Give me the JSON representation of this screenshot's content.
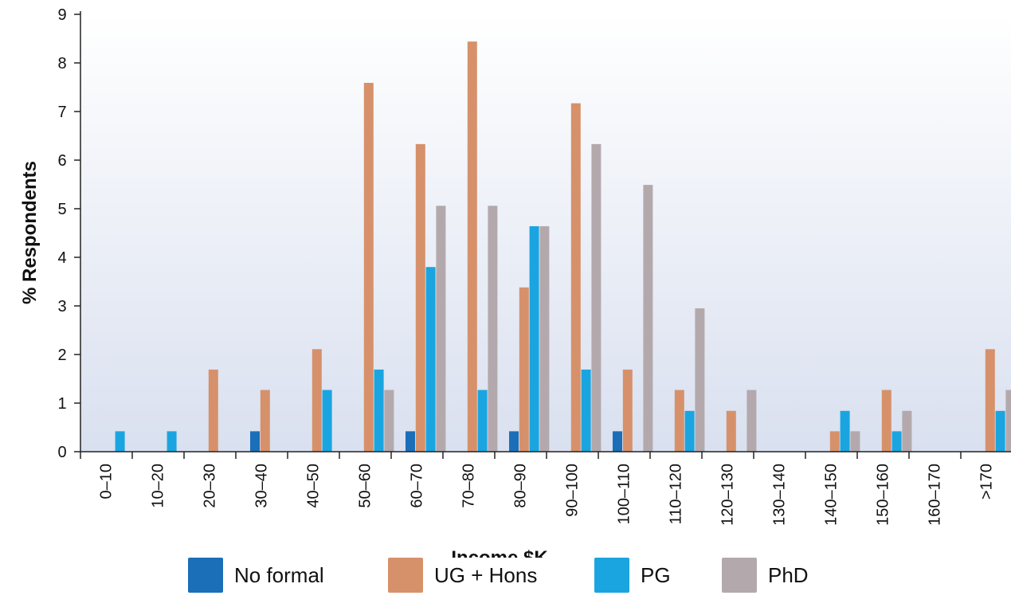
{
  "chart_data": {
    "type": "bar",
    "title": "",
    "xlabel": "Income $K",
    "ylabel": "% Respondents",
    "ylim": [
      0,
      9
    ],
    "yticks": [
      "0",
      "1",
      "2",
      "3",
      "4",
      "5",
      "6",
      "7",
      "8",
      "9"
    ],
    "grid": false,
    "legend_position": "bottom",
    "categories": [
      "0–10",
      "10–20",
      "20–30",
      "30–40",
      "40–50",
      "50–60",
      "60–70",
      "70–80",
      "80–90",
      "90–100",
      "100–110",
      "110–120",
      "120–130",
      "130–140",
      "140–150",
      "150–160",
      "160–170",
      ">170"
    ],
    "series": [
      {
        "name": "No formal",
        "color": "#1a6fb8",
        "values": [
          0,
          0,
          0,
          0.42,
          0,
          0,
          0.42,
          0,
          0.42,
          0,
          0.42,
          0,
          0,
          0,
          0,
          0,
          0,
          0
        ]
      },
      {
        "name": "UG + Hons",
        "color": "#d6916b",
        "values": [
          0,
          0,
          1.69,
          1.27,
          2.11,
          7.59,
          6.33,
          8.44,
          3.38,
          7.17,
          1.69,
          1.27,
          0.84,
          0,
          0.42,
          1.27,
          0,
          2.11
        ]
      },
      {
        "name": "PG",
        "color": "#1aa5e0",
        "values": [
          0.42,
          0.42,
          0,
          0,
          1.27,
          1.69,
          3.8,
          1.27,
          4.64,
          1.69,
          0,
          0.84,
          0,
          0,
          0.84,
          0.42,
          0,
          0.84
        ]
      },
      {
        "name": "PhD",
        "color": "#b3a9ad",
        "values": [
          0,
          0,
          0,
          0,
          0,
          1.27,
          5.06,
          5.06,
          4.64,
          6.33,
          5.49,
          2.95,
          1.27,
          0,
          0.42,
          0.84,
          0,
          1.27
        ]
      }
    ]
  }
}
